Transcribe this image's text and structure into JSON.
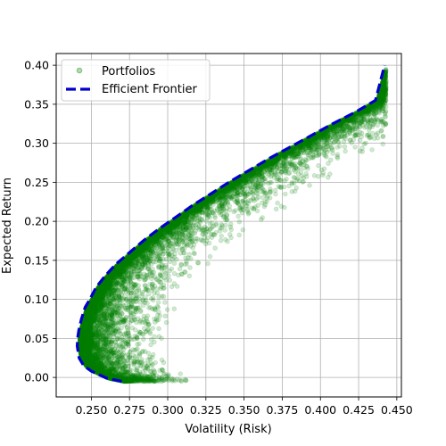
{
  "chart_data": {
    "type": "scatter",
    "title": "",
    "xlabel": "Volatility (Risk)",
    "ylabel": "Expected Return",
    "xlim": [
      0.227,
      0.453
    ],
    "ylim": [
      -0.025,
      0.415
    ],
    "xticks": [
      0.25,
      0.275,
      0.3,
      0.325,
      0.35,
      0.375,
      0.4,
      0.425,
      0.45
    ],
    "xtick_labels": [
      "0.250",
      "0.275",
      "0.300",
      "0.325",
      "0.350",
      "0.375",
      "0.400",
      "0.425",
      "0.450"
    ],
    "yticks": [
      0.0,
      0.05,
      0.1,
      0.15,
      0.2,
      0.25,
      0.3,
      0.35,
      0.4
    ],
    "ytick_labels": [
      "0.00",
      "0.05",
      "0.10",
      "0.15",
      "0.20",
      "0.25",
      "0.30",
      "0.35",
      "0.40"
    ],
    "grid": true,
    "legend": {
      "placement": "top-left",
      "entries": [
        "Portfolios",
        "Efficient Frontier"
      ]
    },
    "series": [
      {
        "name": "Portfolios",
        "type": "scatter",
        "color": "#008000",
        "opacity": 0.15,
        "point_count": 10000,
        "x_range": [
          0.241,
          0.443
        ],
        "y_range": [
          -0.005,
          0.4
        ]
      },
      {
        "name": "Efficient Frontier",
        "type": "line",
        "style": "dashed",
        "color": "#0000cc",
        "x": [
          0.27,
          0.26,
          0.25,
          0.245,
          0.242,
          0.2408,
          0.241,
          0.2418,
          0.2435,
          0.246,
          0.249,
          0.253,
          0.259,
          0.266,
          0.275,
          0.284,
          0.294,
          0.305,
          0.316,
          0.328,
          0.34,
          0.353,
          0.366,
          0.38,
          0.394,
          0.408,
          0.423,
          0.436,
          0.442
        ],
        "y": [
          -0.005,
          -0.001,
          0.008,
          0.015,
          0.025,
          0.04,
          0.05,
          0.06,
          0.075,
          0.09,
          0.1,
          0.115,
          0.13,
          0.145,
          0.16,
          0.175,
          0.19,
          0.205,
          0.22,
          0.235,
          0.25,
          0.265,
          0.28,
          0.295,
          0.31,
          0.325,
          0.34,
          0.355,
          0.4
        ]
      }
    ]
  }
}
